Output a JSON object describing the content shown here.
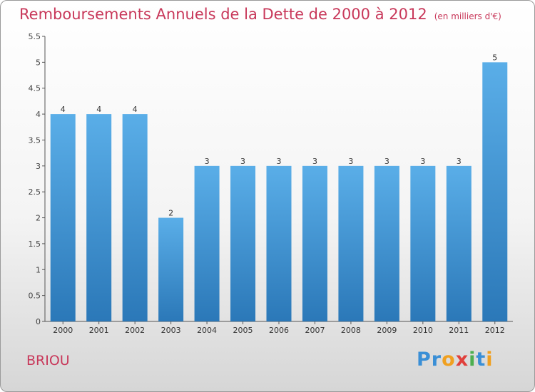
{
  "title": "Remboursements Annuels de la Dette de 2000 à 2012",
  "subtitle": "(en milliers d'€)",
  "commune": "BRIOU",
  "logo": {
    "letters": [
      {
        "ch": "P",
        "color": "#3a8fd6"
      },
      {
        "ch": "r",
        "color": "#3a8fd6"
      },
      {
        "ch": "o",
        "color": "#f0a020"
      },
      {
        "ch": "x",
        "color": "#e0403c"
      },
      {
        "ch": "i",
        "color": "#4caf50"
      },
      {
        "ch": "t",
        "color": "#3a8fd6"
      },
      {
        "ch": "i",
        "color": "#f0a020"
      }
    ]
  },
  "colors": {
    "bar_light": "#5aaee8",
    "bar_dark": "#2b78b8",
    "title": "#c8385a"
  },
  "chart_data": {
    "type": "bar",
    "categories": [
      "2000",
      "2001",
      "2002",
      "2003",
      "2004",
      "2005",
      "2006",
      "2007",
      "2008",
      "2009",
      "2010",
      "2011",
      "2012"
    ],
    "values": [
      4,
      4,
      4,
      2,
      3,
      3,
      3,
      3,
      3,
      3,
      3,
      3,
      5
    ],
    "data_labels": [
      "4",
      "4",
      "4",
      "2",
      "3",
      "3",
      "3",
      "3",
      "3",
      "3",
      "3",
      "3",
      "5"
    ],
    "ylim": [
      0,
      5.5
    ],
    "yticks": [
      0,
      0.5,
      1,
      1.5,
      2,
      2.5,
      3,
      3.5,
      4,
      4.5,
      5,
      5.5
    ],
    "ytick_labels": [
      "0",
      "0.5",
      "1",
      "1.5",
      "2",
      "2.5",
      "3",
      "3.5",
      "4",
      "4.5",
      "5",
      "5.5"
    ],
    "grid": false,
    "legend": "none"
  }
}
